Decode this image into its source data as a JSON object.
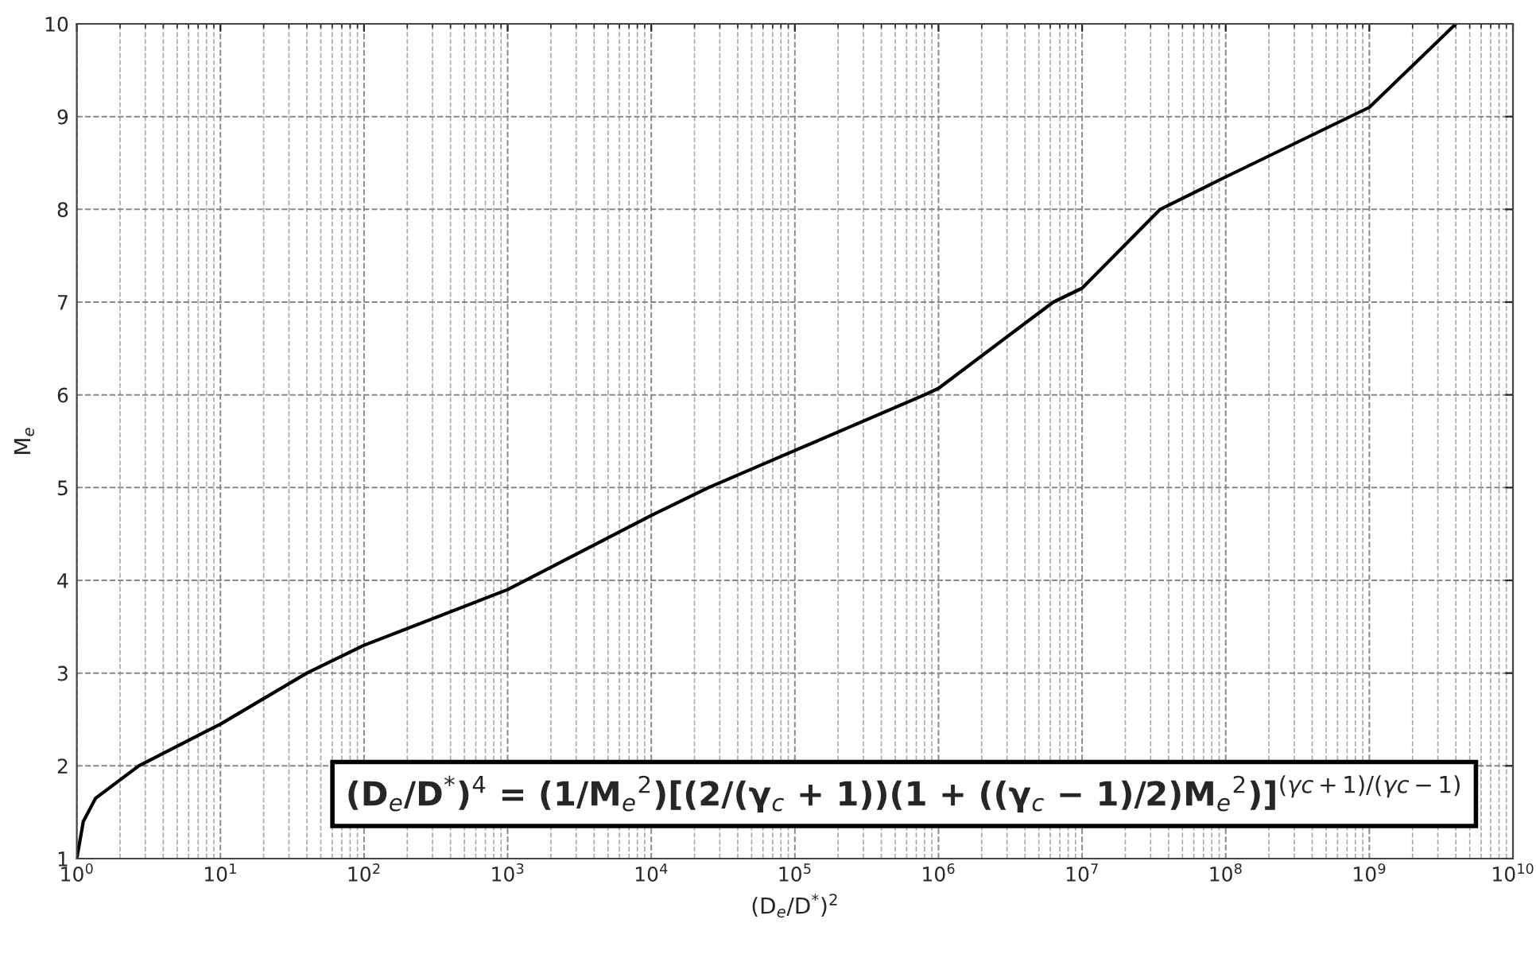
{
  "chart_data": {
    "type": "line",
    "xlabel": "(D$_{e}$/D$^{*}$)$^{2}$",
    "ylabel": "M$_{e}$",
    "x": [
      1,
      1.11,
      1.35,
      2.7,
      10,
      40,
      100,
      1000,
      10000,
      25000,
      100000,
      800000,
      1000000,
      6300000,
      10000000,
      35000000,
      100000000,
      1000000000,
      4000000000
    ],
    "series": [
      {
        "color": "#000000",
        "values": [
          1,
          1.4,
          1.65,
          2,
          2.45,
          3,
          3.3,
          3.9,
          4.7,
          5,
          5.4,
          6,
          6.07,
          7,
          7.15,
          8,
          8.35,
          9.1,
          10
        ]
      }
    ],
    "log": "x",
    "xlim": [
      1,
      10000000000
    ],
    "ylim": [
      1,
      10
    ],
    "xticks": [
      {
        "value": 1,
        "label": "10$^{0}$"
      },
      {
        "value": 10,
        "label": "10$^{1}$"
      },
      {
        "value": 100,
        "label": "10$^{2}$"
      },
      {
        "value": 1000,
        "label": "10$^{3}$"
      },
      {
        "value": 10000,
        "label": "10$^{4}$"
      },
      {
        "value": 100000,
        "label": "10$^{5}$"
      },
      {
        "value": 1000000,
        "label": "10$^{6}$"
      },
      {
        "value": 10000000,
        "label": "10$^{7}$"
      },
      {
        "value": 100000000,
        "label": "10$^{8}$"
      },
      {
        "value": 1000000000,
        "label": "10$^{9}$"
      },
      {
        "value": 10000000000,
        "label": "10$^{10}$"
      }
    ],
    "yticks": [
      1,
      2,
      3,
      4,
      5,
      6,
      7,
      8,
      9,
      10
    ],
    "grid": true,
    "marker": "none",
    "line_style": "solid",
    "annotations": [
      "(D$_{e}$/D$^{*}$)$^{4}$ = (1/M$_{e}$$^{2}$)[(2/(γ$_{c}$ + 1))(1 + ((γ$_{c}$ − 1)/2)M$_{e}$$^{2}$)]$^{(γc+1)/(γc−1)}$"
    ]
  }
}
